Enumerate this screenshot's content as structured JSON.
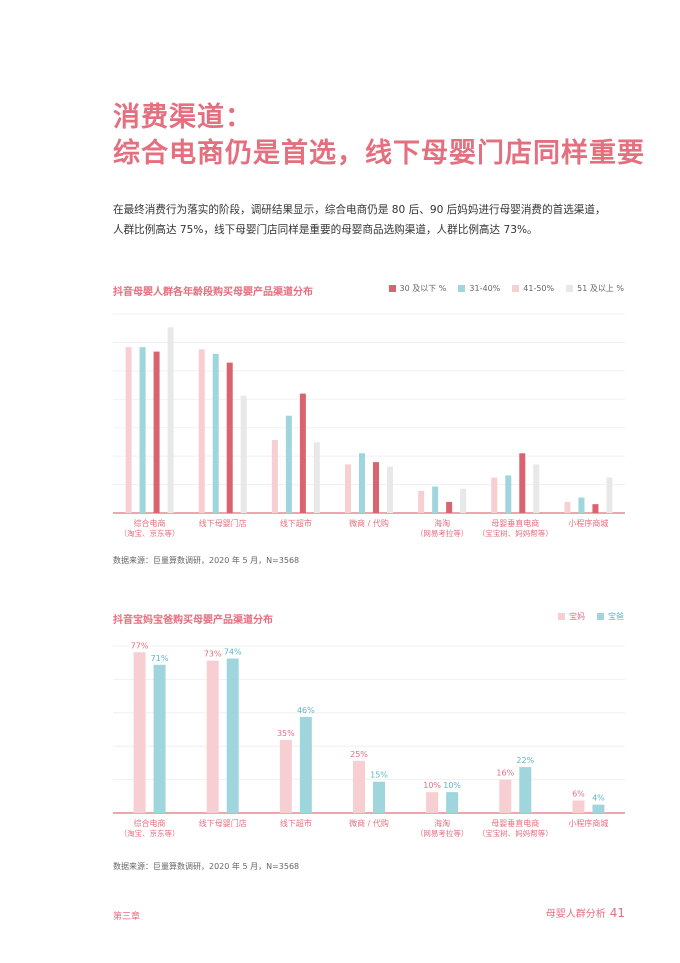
{
  "title": {
    "line1": "消费渠道：",
    "line2": "综合电商仍是首选，线下母婴门店同样重要"
  },
  "intro": {
    "line1": "在最终消费行为落实的阶段，调研结果显示，综合电商仍是 80 后、90 后妈妈进行母婴消费的首选渠道，",
    "line2": "人群比例高达 75%，线下母婴门店同样是重要的母婴商品选购渠道，人群比例高达 73%。"
  },
  "colors": {
    "accent": "#e46f7e",
    "age30": "#d9636f",
    "age31_40": "#9fd6de",
    "age41_50": "#f7cfd3",
    "age51": "#e8e8e8",
    "mom": "#f7cfd3",
    "dad": "#9fd6de"
  },
  "chart1": {
    "title": "抖音母婴人群各年龄段购买母婴产品渠道分布",
    "legend": [
      "30 及以下 %",
      "31-40%",
      "41-50%",
      "51 及以上 %"
    ],
    "source": "数据来源：巨量算数调研，2020 年 5 月，N=3568"
  },
  "chart2": {
    "title": "抖音宝妈宝爸购买母婴产品渠道分布",
    "legend": [
      "宝妈",
      "宝爸"
    ],
    "source": "数据来源：巨量算数调研，2020 年 5 月，N=3568"
  },
  "chart_data": [
    {
      "type": "bar",
      "title": "抖音母婴人群各年龄段购买母婴产品渠道分布",
      "categories": [
        [
          "综合电商",
          "（淘宝、京东等）"
        ],
        [
          "线下母婴门店"
        ],
        [
          "线下超市"
        ],
        [
          "微商 / 代购"
        ],
        [
          "海淘",
          "（网易考拉等）"
        ],
        [
          "母婴垂直电商",
          "（宝宝树、妈妈帮等）"
        ],
        [
          "小程序商城"
        ]
      ],
      "series": [
        {
          "name": "41-50%",
          "values": [
            75,
            74,
            33,
            22,
            10,
            16,
            5
          ]
        },
        {
          "name": "31-40%",
          "values": [
            75,
            72,
            44,
            27,
            12,
            17,
            7
          ]
        },
        {
          "name": "30 及以下 %",
          "values": [
            73,
            68,
            54,
            23,
            5,
            27,
            4
          ]
        },
        {
          "name": "51 及以上 %",
          "values": [
            84,
            53,
            32,
            21,
            11,
            22,
            16
          ]
        }
      ],
      "ylim": [
        0,
        90
      ],
      "grid": true,
      "legend_position": "top-right"
    },
    {
      "type": "bar",
      "title": "抖音宝妈宝爸购买母婴产品渠道分布",
      "categories": [
        [
          "综合电商",
          "（淘宝、京东等）"
        ],
        [
          "线下母婴门店"
        ],
        [
          "线下超市"
        ],
        [
          "微商 / 代购"
        ],
        [
          "海淘",
          "（网易考拉等）"
        ],
        [
          "母婴垂直电商",
          "（宝宝树、妈妈帮等）"
        ],
        [
          "小程序商城"
        ]
      ],
      "series": [
        {
          "name": "宝妈",
          "values": [
            77,
            73,
            35,
            25,
            10,
            16,
            6
          ],
          "labels": [
            "77%",
            "73%",
            "35%",
            "25%",
            "10%",
            "16%",
            "6%"
          ]
        },
        {
          "name": "宝爸",
          "values": [
            71,
            74,
            46,
            15,
            10,
            22,
            4
          ],
          "labels": [
            "71%",
            "74%",
            "46%",
            "15%",
            "10%",
            "22%",
            "4%"
          ]
        }
      ],
      "ylim": [
        0,
        80
      ],
      "grid": true,
      "legend_position": "top-right"
    }
  ],
  "footer": {
    "chapter": "第三章",
    "section": "母婴人群分析",
    "page": "41"
  }
}
